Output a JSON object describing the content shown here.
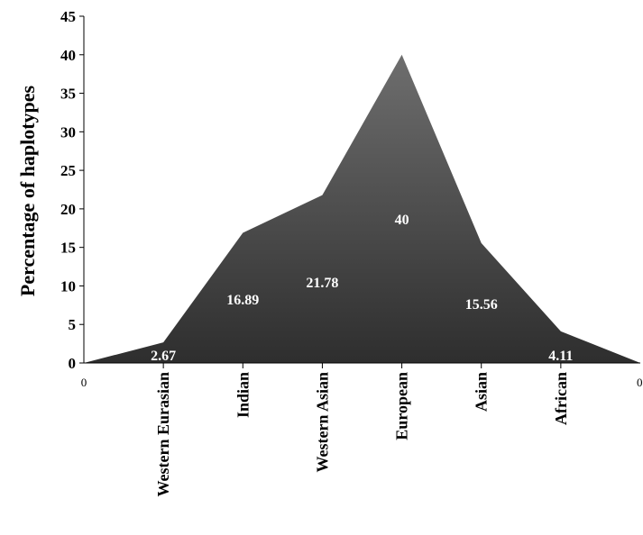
{
  "chart_data": {
    "type": "area",
    "categories": [
      "0",
      "Western Eurasian",
      "Indian",
      "Western Asian",
      "European",
      "Asian",
      "African",
      "0"
    ],
    "values": [
      0,
      2.67,
      16.89,
      21.78,
      40,
      15.56,
      4.11,
      0
    ],
    "data_labels": [
      "",
      "2.67",
      "16.89",
      "21.78",
      "40",
      "15.56",
      "4.11",
      ""
    ],
    "title": "",
    "xlabel": "",
    "ylabel": "Percentage of  haplotypes",
    "ylim": [
      0,
      45
    ],
    "yticks": [
      0,
      5,
      10,
      15,
      20,
      25,
      30,
      35,
      40,
      45
    ],
    "grid": false,
    "legend": "none",
    "fill_color_top": "#6e6e6e",
    "fill_color_bottom": "#2e2e2e"
  }
}
